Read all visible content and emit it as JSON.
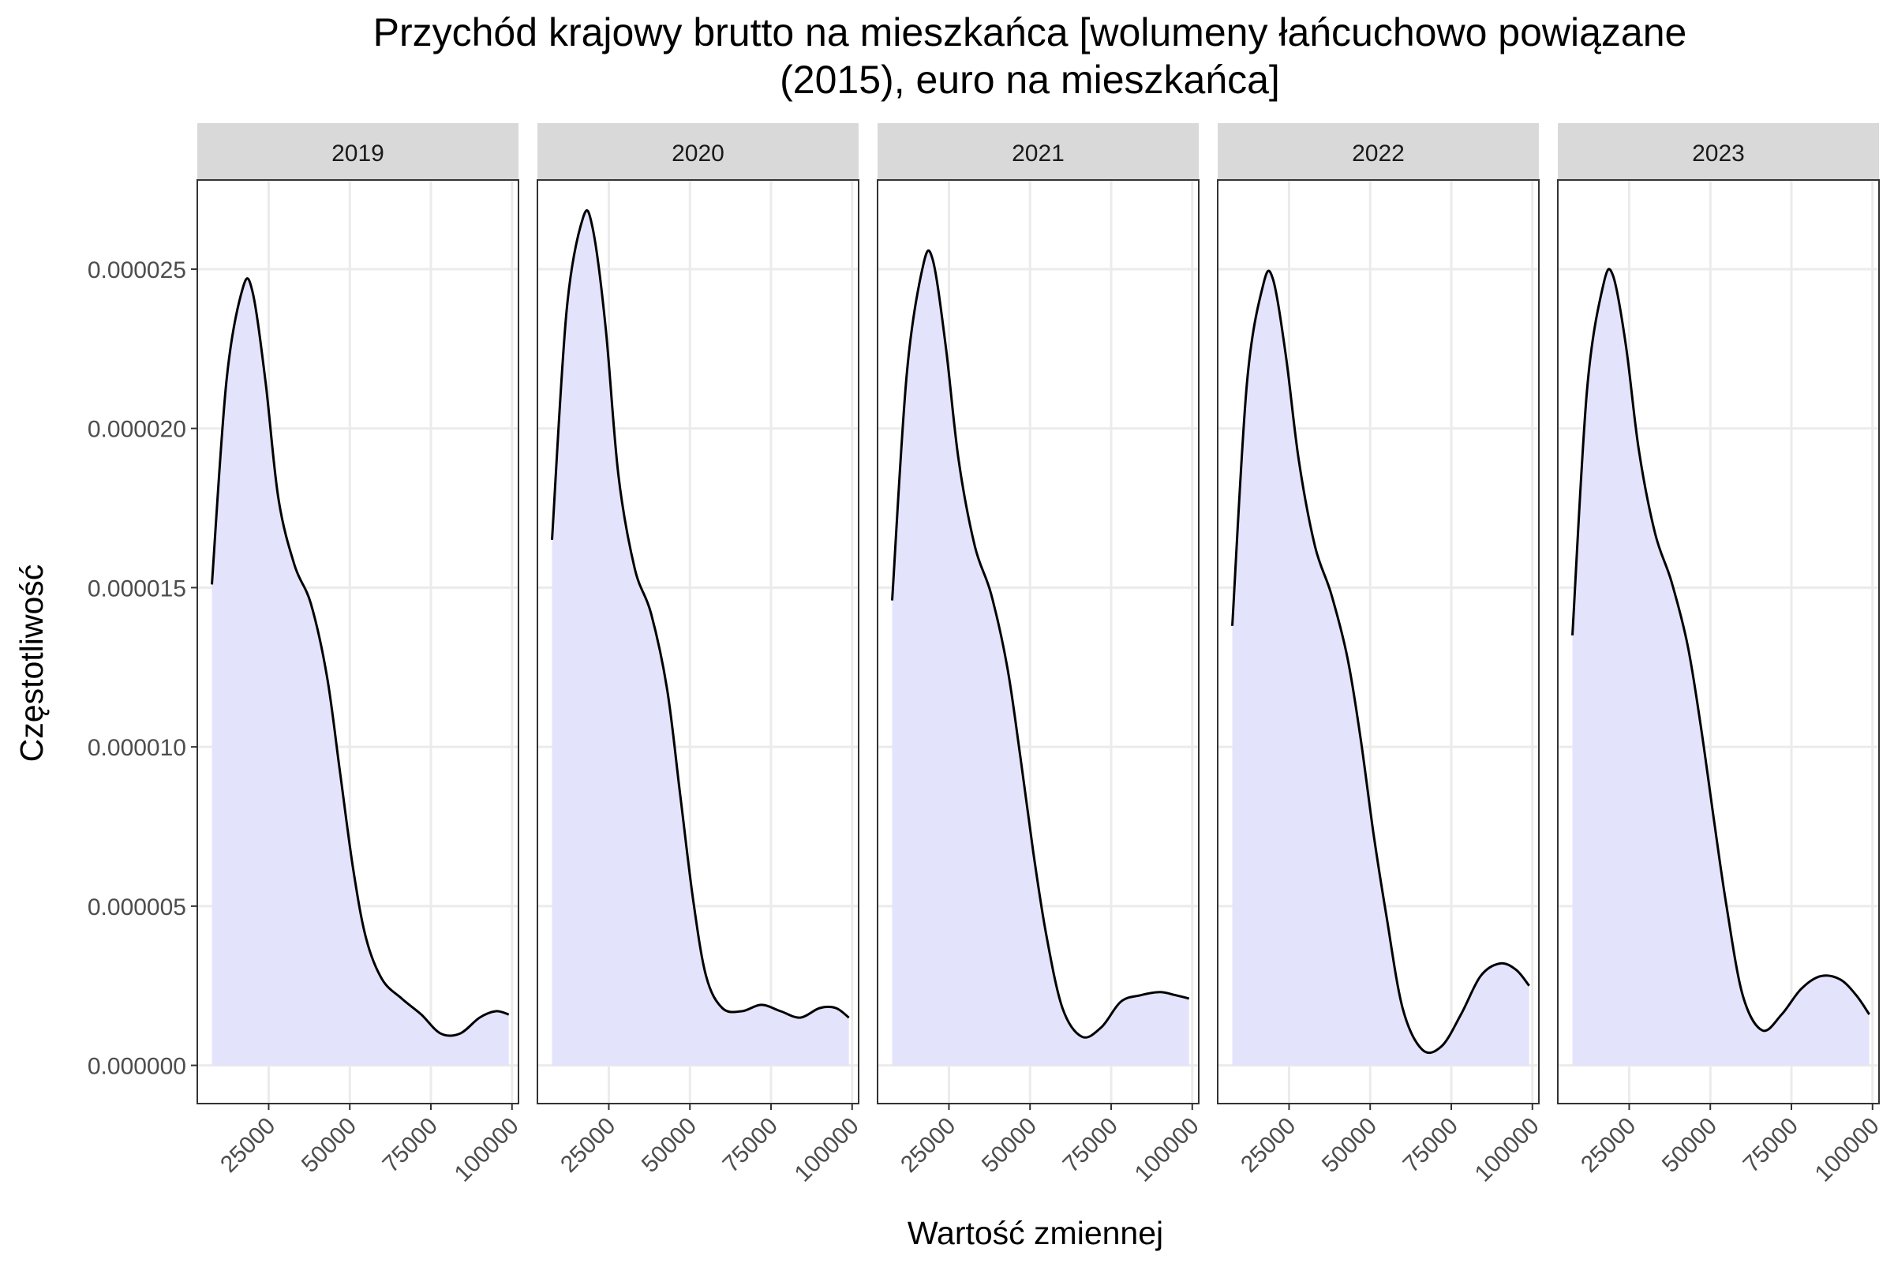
{
  "chart_data": {
    "type": "area",
    "title": "Przychód krajowy brutto na mieszkańca [wolumeny łańcuchowo powiązane (2015), euro na mieszkańca]",
    "xlabel": "Wartość zmiennej",
    "ylabel": "Częstotliwość",
    "xlim": [
      3000,
      102000
    ],
    "ylim": [
      -1.2e-06,
      2.78e-05
    ],
    "x_ticks": [
      25000,
      50000,
      75000,
      100000
    ],
    "x_tick_labels": [
      "25000",
      "50000",
      "75000",
      "100000"
    ],
    "y_ticks": [
      0,
      5e-06,
      1e-05,
      1.5e-05,
      2e-05,
      2.5e-05
    ],
    "y_tick_labels": [
      "0.000000",
      "0.000005",
      "0.000010",
      "0.000015",
      "0.000020",
      "0.000025"
    ],
    "grid": true,
    "fill_color": "#e3e3fc",
    "line_color": "#000000",
    "strip_color": "#d9d9d9",
    "facets": [
      {
        "label": "2019",
        "x": [
          7500,
          12000,
          17000,
          20000,
          24000,
          28000,
          33000,
          38000,
          43000,
          47000,
          51000,
          55000,
          60000,
          66000,
          72000,
          78000,
          84000,
          90000,
          95000,
          99000
        ],
        "y": [
          1.51e-05,
          2.15e-05,
          2.44e-05,
          2.43e-05,
          2.15e-05,
          1.78e-05,
          1.57e-05,
          1.45e-05,
          1.22e-05,
          9.2e-06,
          6.2e-06,
          4e-06,
          2.7e-06,
          2.1e-06,
          1.6e-06,
          1e-06,
          1e-06,
          1.5e-06,
          1.7e-06,
          1.6e-06
        ]
      },
      {
        "label": "2020",
        "x": [
          7500,
          12000,
          17000,
          20000,
          24000,
          28000,
          33000,
          38000,
          43000,
          47000,
          51000,
          55000,
          60000,
          66000,
          72000,
          78000,
          84000,
          90000,
          95000,
          99000
        ],
        "y": [
          1.65e-05,
          2.37e-05,
          2.66e-05,
          2.63e-05,
          2.32e-05,
          1.85e-05,
          1.56e-05,
          1.42e-05,
          1.18e-05,
          8.5e-06,
          5.2e-06,
          2.8e-06,
          1.8e-06,
          1.7e-06,
          1.9e-06,
          1.7e-06,
          1.5e-06,
          1.8e-06,
          1.8e-06,
          1.5e-06
        ]
      },
      {
        "label": "2021",
        "x": [
          7500,
          12000,
          17000,
          20000,
          24000,
          28000,
          33000,
          38000,
          43000,
          47000,
          51000,
          55000,
          60000,
          66000,
          72000,
          78000,
          84000,
          90000,
          95000,
          99000
        ],
        "y": [
          1.46e-05,
          2.17e-05,
          2.51e-05,
          2.53e-05,
          2.26e-05,
          1.9e-05,
          1.63e-05,
          1.48e-05,
          1.25e-05,
          9.7e-06,
          6.7e-06,
          4.1e-06,
          1.8e-06,
          9e-07,
          1.2e-06,
          2e-06,
          2.2e-06,
          2.3e-06,
          2.2e-06,
          2.1e-06
        ]
      },
      {
        "label": "2022",
        "x": [
          7500,
          12000,
          17000,
          20000,
          24000,
          28000,
          33000,
          38000,
          43000,
          47000,
          51000,
          55000,
          60000,
          66000,
          72000,
          78000,
          84000,
          90000,
          95000,
          99000
        ],
        "y": [
          1.38e-05,
          2.14e-05,
          2.45e-05,
          2.47e-05,
          2.23e-05,
          1.9e-05,
          1.63e-05,
          1.48e-05,
          1.28e-05,
          1.03e-05,
          7.3e-06,
          4.7e-06,
          1.8e-06,
          5e-07,
          6e-07,
          1.6e-06,
          2.8e-06,
          3.2e-06,
          3e-06,
          2.5e-06
        ]
      },
      {
        "label": "2023",
        "x": [
          7500,
          12000,
          17000,
          20000,
          24000,
          28000,
          33000,
          38000,
          43000,
          47000,
          51000,
          55000,
          60000,
          66000,
          72000,
          78000,
          84000,
          90000,
          95000,
          99000
        ],
        "y": [
          1.35e-05,
          2.12e-05,
          2.45e-05,
          2.48e-05,
          2.26e-05,
          1.93e-05,
          1.67e-05,
          1.52e-05,
          1.32e-05,
          1.07e-05,
          7.8e-06,
          5e-06,
          2.2e-06,
          1.1e-06,
          1.6e-06,
          2.4e-06,
          2.8e-06,
          2.7e-06,
          2.2e-06,
          1.6e-06
        ]
      }
    ]
  }
}
